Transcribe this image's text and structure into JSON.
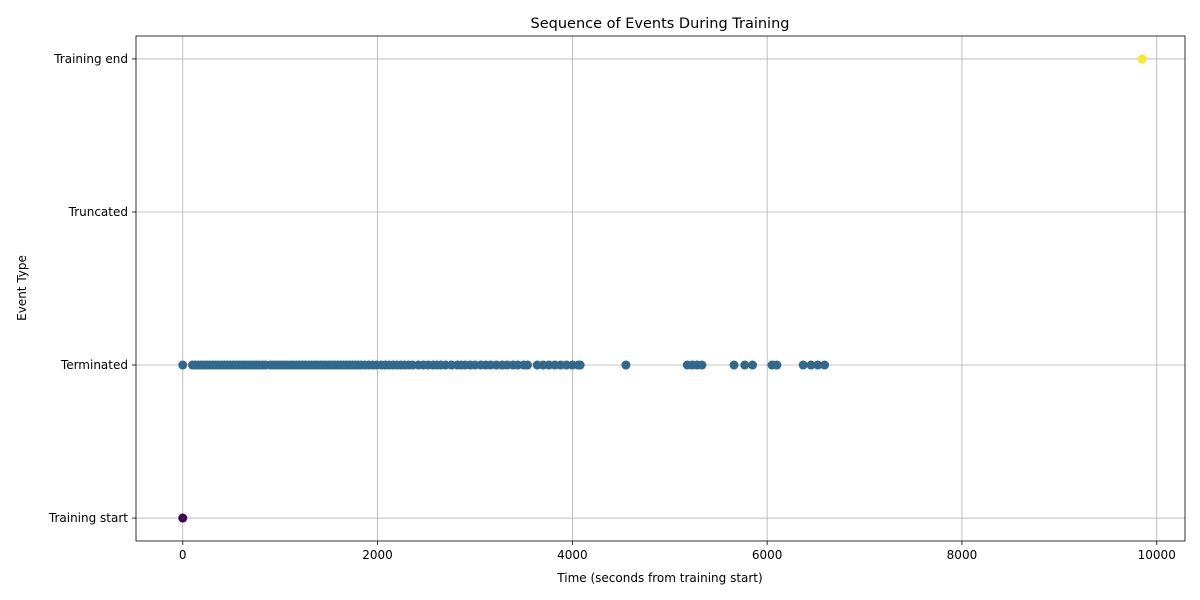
{
  "chart_data": {
    "type": "scatter",
    "title": "Sequence of Events During Training",
    "xlabel": "Time (seconds from training start)",
    "ylabel": "Event Type",
    "xlim": [
      -480,
      10290
    ],
    "ylim": [
      -0.15,
      3.15
    ],
    "x_ticks": [
      0,
      2000,
      4000,
      6000,
      8000,
      10000
    ],
    "y_categories": [
      "Training start",
      "Terminated",
      "Truncated",
      "Training end"
    ],
    "grid": true,
    "colors": {
      "Training start": "#440154",
      "Terminated": "#31688e",
      "Truncated": "#35b779",
      "Training end": "#fde725"
    },
    "series": [
      {
        "name": "Training start",
        "category_index": 0,
        "x": [
          0
        ]
      },
      {
        "name": "Terminated",
        "category_index": 1,
        "x": [
          0,
          100,
          130,
          160,
          190,
          220,
          250,
          280,
          310,
          340,
          370,
          400,
          430,
          460,
          490,
          520,
          550,
          580,
          610,
          640,
          670,
          700,
          730,
          760,
          790,
          820,
          850,
          900,
          930,
          960,
          990,
          1020,
          1050,
          1080,
          1110,
          1140,
          1170,
          1200,
          1230,
          1260,
          1290,
          1320,
          1350,
          1380,
          1410,
          1440,
          1470,
          1500,
          1530,
          1560,
          1590,
          1620,
          1650,
          1680,
          1710,
          1740,
          1770,
          1800,
          1830,
          1870,
          1910,
          1950,
          1990,
          2040,
          2080,
          2120,
          2160,
          2200,
          2240,
          2280,
          2320,
          2360,
          2420,
          2470,
          2520,
          2570,
          2610,
          2650,
          2700,
          2760,
          2820,
          2860,
          2900,
          2950,
          3000,
          3060,
          3110,
          3160,
          3220,
          3280,
          3330,
          3390,
          3440,
          3500,
          3540,
          3640,
          3700,
          3760,
          3820,
          3880,
          3940,
          4000,
          4060,
          4080,
          4550,
          5180,
          5230,
          5280,
          5330,
          5660,
          5770,
          5850,
          6050,
          6100,
          6370,
          6450,
          6520,
          6590
        ]
      },
      {
        "name": "Training end",
        "category_index": 3,
        "x": [
          9850
        ]
      }
    ]
  }
}
